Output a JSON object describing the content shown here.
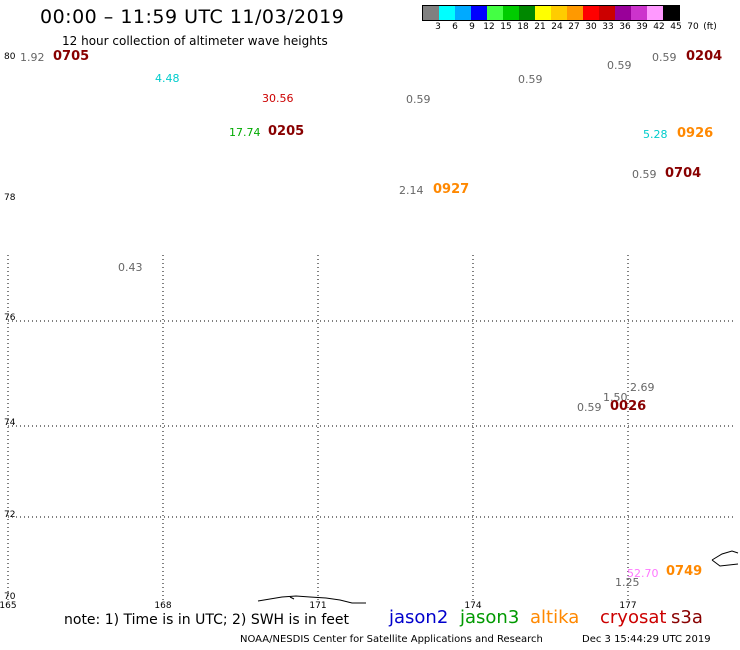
{
  "header": {
    "title": "00:00 – 11:59 UTC 11/03/2019",
    "subtitle": "12 hour collection of altimeter wave heights"
  },
  "color_scale": {
    "labels": [
      "3",
      "6",
      "9",
      "12",
      "15",
      "18",
      "21",
      "24",
      "27",
      "30",
      "33",
      "36",
      "39",
      "42",
      "45",
      "70",
      "(ft)"
    ],
    "colors": [
      "#808080",
      "#00ffff",
      "#00aaff",
      "#0000ff",
      "#44ff44",
      "#00cc00",
      "#008800",
      "#ffff00",
      "#ffcc00",
      "#ff9900",
      "#ff0000",
      "#cc0000",
      "#990099",
      "#cc33cc",
      "#ff99ff",
      "#000000"
    ]
  },
  "axes": {
    "lat_labels": [
      "80",
      "78",
      "76",
      "74",
      "72",
      "70"
    ],
    "lon_labels": [
      "165",
      "168",
      "171",
      "174",
      "177"
    ]
  },
  "observations": {
    "values": [
      "1.92",
      "4.48",
      "30.56",
      "0.59",
      "0.59",
      "0.59",
      "0.59",
      "17.74",
      "5.28",
      "0.59",
      "2.14",
      "0.43",
      "1.50",
      "2.69",
      "0.59",
      "52.70",
      "1.25"
    ],
    "times": [
      "0705",
      "0205",
      "0204",
      "0926",
      "0704",
      "0927",
      "0026",
      "0749"
    ],
    "value_colors": {
      "default": "#666666",
      "cyan": "#00cccc",
      "red": "#cc0000",
      "green": "#00aa00",
      "pink": "#ff77ff"
    },
    "time_colors": {
      "cryosat": "#880000",
      "altika": "#ff8800"
    }
  },
  "footer": {
    "note": "note: 1) Time is in UTC; 2) SWH is in feet",
    "satellites": [
      {
        "name": "jason2",
        "color": "#0000cc"
      },
      {
        "name": "jason3",
        "color": "#009900"
      },
      {
        "name": "altika",
        "color": "#ff8800"
      },
      {
        "name": "cryosat",
        "color": "#cc0000"
      },
      {
        "name": "s3a",
        "color": "#880000"
      }
    ],
    "credit": "NOAA/NESDIS Center for Satellite Applications and Research",
    "timestamp": "Dec  3 15:44:29 UTC 2019"
  }
}
